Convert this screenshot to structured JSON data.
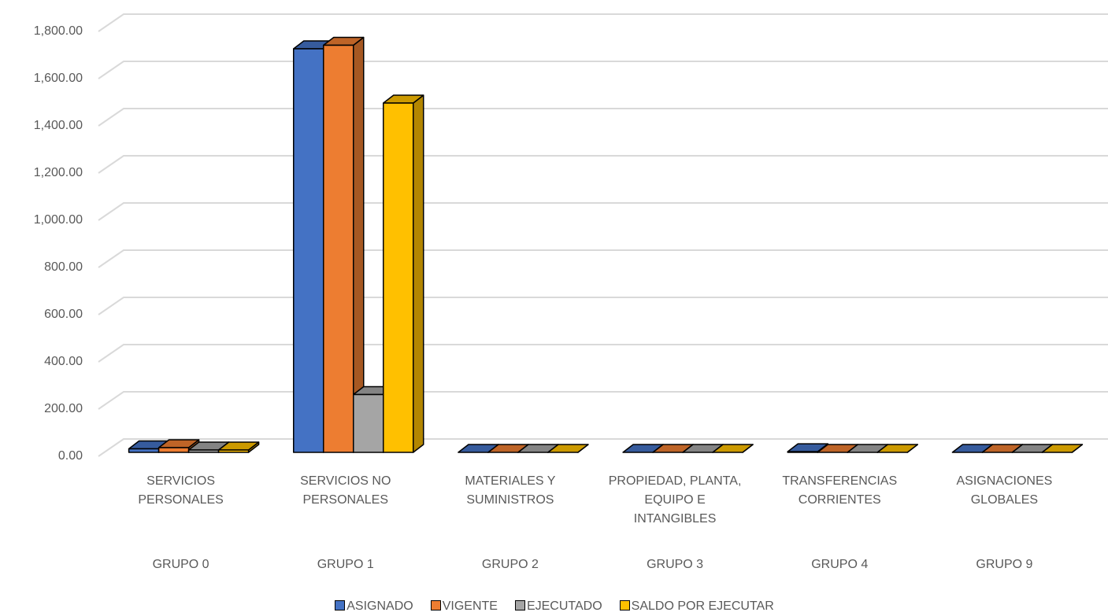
{
  "chart_data": {
    "type": "bar3d",
    "categories": [
      "SERVICIOS PERSONALES",
      "SERVICIOS NO PERSONALES",
      "MATERIALES Y SUMINISTROS",
      "PROPIEDAD, PLANTA, EQUIPO E INTANGIBLES",
      "TRANSFERENCIAS CORRIENTES",
      "ASIGNACIONES GLOBALES"
    ],
    "groups": [
      "GRUPO 0",
      "GRUPO 1",
      "GRUPO 2",
      "GRUPO 3",
      "GRUPO 4",
      "GRUPO 9"
    ],
    "series": [
      {
        "name": "ASIGNADO",
        "color": "#4472c4",
        "values": [
          15,
          1710,
          0,
          0,
          3,
          0
        ]
      },
      {
        "name": "VIGENTE",
        "color": "#ed7d31",
        "values": [
          20,
          1725,
          0,
          0,
          0,
          0
        ]
      },
      {
        "name": "EJECUTADO",
        "color": "#a5a5a5",
        "values": [
          10,
          245,
          0,
          0,
          0,
          0
        ]
      },
      {
        "name": "SALDO POR EJECUTAR",
        "color": "#ffc000",
        "values": [
          10,
          1480,
          0,
          0,
          0,
          0
        ]
      }
    ],
    "ylim": [
      0,
      1800
    ],
    "yticks": [
      {
        "value": 0,
        "label": "0.00"
      },
      {
        "value": 200,
        "label": "200.00"
      },
      {
        "value": 400,
        "label": "400.00"
      },
      {
        "value": 600,
        "label": "600.00"
      },
      {
        "value": 800,
        "label": "800.00"
      },
      {
        "value": 1000,
        "label": "1,000.00"
      },
      {
        "value": 1200,
        "label": "1,200.00"
      },
      {
        "value": 1400,
        "label": "1,400.00"
      },
      {
        "value": 1600,
        "label": "1,600.00"
      },
      {
        "value": 1800,
        "label": "1,800.00"
      }
    ],
    "grid": true,
    "legend": "bottom"
  }
}
